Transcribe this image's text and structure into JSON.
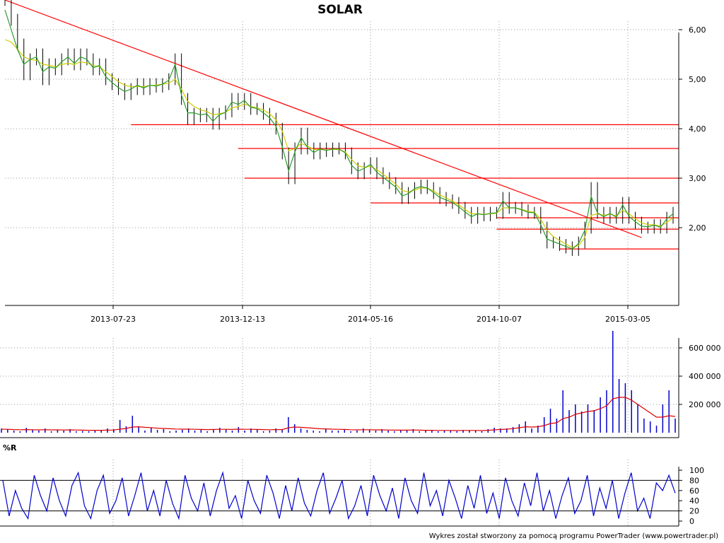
{
  "chart_data": [
    {
      "type": "line",
      "pane": "price",
      "title": "SOLAR",
      "x_ticks": [
        "2013-07-23",
        "2013-12-13",
        "2014-05-16",
        "2014-10-07",
        "2015-03-05"
      ],
      "y_ticks": [
        "2,00",
        "3,00",
        "4,00",
        "5,00",
        "6,00"
      ],
      "ylim": [
        1.4,
        7.0
      ],
      "grid": true,
      "series": [
        {
          "color": "#000000",
          "values": [
            6.6,
            6.2,
            5.7,
            5.1,
            5.4,
            5.5,
            5.0,
            5.3,
            5.2,
            5.4,
            5.5,
            5.3,
            5.5,
            5.4,
            5.2,
            5.3,
            5.0,
            4.9,
            4.8,
            4.7,
            4.8,
            4.9,
            4.8,
            4.9,
            4.85,
            4.9,
            5.0,
            5.4,
            4.6,
            4.2,
            4.3,
            4.25,
            4.3,
            4.1,
            4.3,
            4.35,
            4.6,
            4.5,
            4.6,
            4.4,
            4.4,
            4.3,
            4.2,
            4.0,
            3.5,
            3.0,
            3.6,
            3.9,
            3.6,
            3.5,
            3.6,
            3.55,
            3.6,
            3.6,
            3.5,
            3.2,
            3.1,
            3.2,
            3.3,
            3.1,
            3.0,
            2.9,
            2.8,
            2.6,
            2.7,
            2.8,
            2.85,
            2.8,
            2.7,
            2.6,
            2.55,
            2.5,
            2.4,
            2.3,
            2.2,
            2.3,
            2.25,
            2.3,
            2.3,
            2.6,
            2.4,
            2.4,
            2.35,
            2.3,
            2.3,
            2.0,
            1.7,
            1.7,
            1.65,
            1.6,
            1.55,
            1.7,
            2.0,
            2.8,
            2.3,
            2.2,
            2.3,
            2.2,
            2.5,
            2.2,
            2.1,
            2.0,
            2.0,
            2.05,
            2.0,
            2.2,
            2.3
          ]
        },
        {
          "color": "#cccc00",
          "values": [
            5.8,
            5.75,
            5.6,
            5.45,
            5.4,
            5.38,
            5.3,
            5.28,
            5.25,
            5.3,
            5.32,
            5.3,
            5.35,
            5.33,
            5.28,
            5.25,
            5.15,
            5.05,
            4.95,
            4.88,
            4.85,
            4.85,
            4.85,
            4.87,
            4.88,
            4.9,
            4.92,
            5.0,
            4.8,
            4.55,
            4.45,
            4.38,
            4.35,
            4.28,
            4.3,
            4.33,
            4.42,
            4.45,
            4.5,
            4.45,
            4.42,
            4.38,
            4.3,
            4.18,
            3.95,
            3.55,
            3.6,
            3.7,
            3.65,
            3.58,
            3.58,
            3.57,
            3.58,
            3.58,
            3.53,
            3.38,
            3.25,
            3.22,
            3.24,
            3.17,
            3.08,
            2.98,
            2.88,
            2.75,
            2.72,
            2.76,
            2.8,
            2.8,
            2.74,
            2.66,
            2.6,
            2.54,
            2.46,
            2.37,
            2.28,
            2.28,
            2.27,
            2.28,
            2.29,
            2.4,
            2.4,
            2.4,
            2.37,
            2.33,
            2.31,
            2.17,
            1.95,
            1.82,
            1.74,
            1.67,
            1.6,
            1.64,
            1.8,
            2.25,
            2.28,
            2.25,
            2.27,
            2.24,
            2.35,
            2.28,
            2.18,
            2.1,
            2.06,
            2.06,
            2.03,
            2.11,
            2.2
          ]
        },
        {
          "color": "#2a9d2a",
          "values": [
            6.4,
            6.0,
            5.6,
            5.3,
            5.4,
            5.45,
            5.15,
            5.25,
            5.22,
            5.35,
            5.45,
            5.32,
            5.45,
            5.4,
            5.23,
            5.28,
            5.05,
            4.93,
            4.83,
            4.75,
            4.8,
            4.88,
            4.82,
            4.88,
            4.86,
            4.9,
            4.98,
            5.3,
            4.68,
            4.32,
            4.32,
            4.28,
            4.3,
            4.15,
            4.28,
            4.33,
            4.54,
            4.49,
            4.57,
            4.43,
            4.41,
            4.32,
            4.22,
            4.05,
            3.63,
            3.15,
            3.53,
            3.82,
            3.62,
            3.52,
            3.59,
            3.56,
            3.59,
            3.59,
            3.51,
            3.26,
            3.14,
            3.2,
            3.28,
            3.12,
            3.02,
            2.92,
            2.82,
            2.64,
            2.69,
            2.79,
            2.83,
            2.8,
            2.71,
            2.61,
            2.56,
            2.51,
            2.42,
            2.32,
            2.22,
            2.28,
            2.26,
            2.29,
            2.3,
            2.54,
            2.4,
            2.4,
            2.36,
            2.31,
            2.3,
            2.06,
            1.77,
            1.72,
            1.67,
            1.62,
            1.57,
            1.68,
            1.95,
            2.63,
            2.3,
            2.22,
            2.29,
            2.21,
            2.46,
            2.23,
            2.12,
            2.03,
            2.02,
            2.05,
            2.01,
            2.18,
            2.28
          ]
        }
      ],
      "annotations": [
        {
          "kind": "trendline",
          "color": "#ff0000",
          "from": [
            0,
            6.6
          ],
          "to": [
            101,
            1.8
          ]
        },
        {
          "kind": "hline",
          "color": "#ff0000",
          "y": 4.08,
          "from_index": 20
        },
        {
          "kind": "hline",
          "color": "#ff0000",
          "y": 3.6,
          "from_index": 37
        },
        {
          "kind": "hline",
          "color": "#ff0000",
          "y": 3.0,
          "from_index": 38
        },
        {
          "kind": "hline",
          "color": "#ff0000",
          "y": 2.5,
          "from_index": 58
        },
        {
          "kind": "hline",
          "color": "#ff0000",
          "y": 2.2,
          "from_index": 78
        },
        {
          "kind": "hline",
          "color": "#ff0000",
          "y": 1.97,
          "from_index": 78
        },
        {
          "kind": "hline",
          "color": "#ff0000",
          "y": 1.57,
          "from_index": 88
        }
      ]
    },
    {
      "type": "bar",
      "pane": "volume",
      "y_ticks": [
        "200 000",
        "400 000",
        "600 000"
      ],
      "ylim": [
        0,
        750000
      ],
      "grid": true,
      "color": "#0000cc",
      "avg_color": "#dd0000",
      "values": [
        30000,
        25000,
        15000,
        10000,
        35000,
        20000,
        15000,
        30000,
        10000,
        20000,
        15000,
        25000,
        10000,
        12000,
        10000,
        15000,
        20000,
        30000,
        25000,
        90000,
        45000,
        120000,
        40000,
        15000,
        35000,
        20000,
        25000,
        10000,
        15000,
        20000,
        30000,
        15000,
        20000,
        10000,
        25000,
        35000,
        25000,
        15000,
        40000,
        15000,
        30000,
        20000,
        10000,
        15000,
        30000,
        20000,
        110000,
        60000,
        30000,
        20000,
        15000,
        10000,
        25000,
        15000,
        15000,
        20000,
        10000,
        15000,
        30000,
        20000,
        15000,
        25000,
        15000,
        10000,
        20000,
        15000,
        25000,
        10000,
        15000,
        20000,
        10000,
        15000,
        15000,
        10000,
        20000,
        15000,
        15000,
        10000,
        25000,
        35000,
        30000,
        30000,
        40000,
        60000,
        80000,
        30000,
        50000,
        110000,
        170000,
        100000,
        300000,
        160000,
        200000,
        150000,
        200000,
        160000,
        250000,
        300000,
        720000,
        380000,
        350000,
        300000,
        200000,
        100000,
        80000,
        50000,
        200000,
        300000,
        100000
      ],
      "avg": [
        25000,
        24000,
        22000,
        21000,
        22000,
        21000,
        20000,
        21000,
        20000,
        20000,
        19000,
        20000,
        19000,
        18000,
        17000,
        17000,
        17000,
        18000,
        19000,
        25000,
        30000,
        40000,
        42000,
        38000,
        36000,
        32000,
        30000,
        28000,
        26000,
        25000,
        25000,
        24000,
        23000,
        22000,
        23000,
        24000,
        24000,
        23000,
        25000,
        24000,
        24000,
        23000,
        22000,
        21000,
        22000,
        22000,
        35000,
        40000,
        38000,
        35000,
        32000,
        28000,
        27000,
        25000,
        24000,
        23000,
        21000,
        20000,
        21000,
        21000,
        20000,
        20000,
        19000,
        18000,
        18000,
        18000,
        19000,
        18000,
        17000,
        17000,
        16000,
        16000,
        16000,
        15000,
        16000,
        16000,
        16000,
        15000,
        17000,
        20000,
        23000,
        25000,
        29000,
        35000,
        42000,
        40000,
        42000,
        50000,
        65000,
        70000,
        100000,
        110000,
        130000,
        140000,
        150000,
        155000,
        170000,
        190000,
        240000,
        250000,
        250000,
        230000,
        200000,
        170000,
        140000,
        110000,
        110000,
        120000,
        115000
      ]
    },
    {
      "type": "line",
      "pane": "oscillator",
      "title": "%R",
      "y_ticks": [
        "0",
        "20",
        "40",
        "60",
        "80",
        "100"
      ],
      "ylim": [
        0,
        100
      ],
      "reference_lines": [
        20,
        80
      ],
      "grid": true,
      "color": "#0000cc",
      "values": [
        80,
        10,
        60,
        25,
        5,
        90,
        50,
        20,
        85,
        40,
        10,
        70,
        95,
        30,
        5,
        60,
        90,
        15,
        40,
        85,
        10,
        50,
        95,
        20,
        60,
        10,
        80,
        35,
        5,
        90,
        45,
        20,
        75,
        10,
        60,
        95,
        25,
        50,
        5,
        80,
        40,
        15,
        90,
        55,
        5,
        70,
        20,
        85,
        35,
        10,
        60,
        95,
        15,
        45,
        80,
        5,
        30,
        70,
        10,
        90,
        50,
        20,
        65,
        5,
        85,
        40,
        15,
        95,
        30,
        60,
        10,
        80,
        45,
        5,
        70,
        25,
        90,
        15,
        55,
        5,
        85,
        40,
        10,
        75,
        30,
        95,
        20,
        60,
        5,
        50,
        85,
        15,
        40,
        90,
        10,
        65,
        25,
        80,
        5,
        55,
        95,
        20,
        45,
        5,
        75,
        60,
        90,
        55
      ]
    }
  ],
  "footer": "Wykres został stworzony za pomocą programu PowerTrader (www.powertrader.pl)"
}
